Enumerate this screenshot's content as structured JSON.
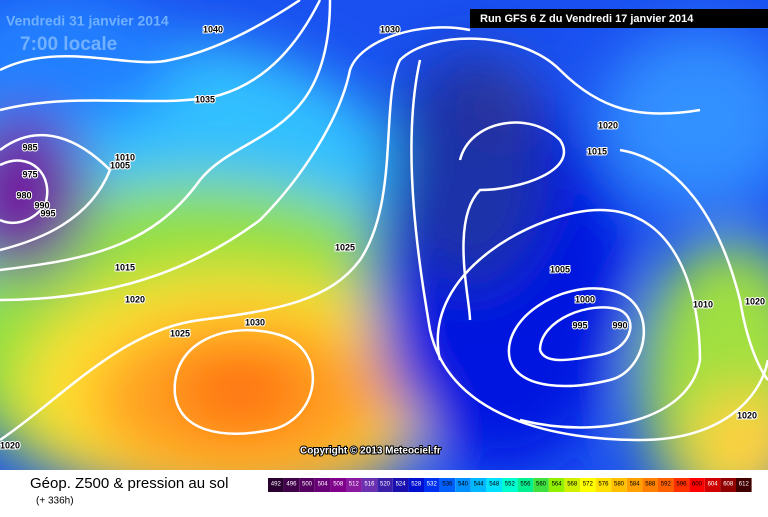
{
  "header": {
    "date": "Vendredi 31 janvier 2014",
    "time": "7:00 locale",
    "run": "Run GFS 6 Z du Vendredi 17 janvier 2014"
  },
  "copyright": "Copyright © 2013 Meteociel.fr",
  "footer": {
    "title": "Géop. Z500 & pression au sol",
    "lead": "(+ 336h)"
  },
  "isobar_labels": [
    "1040",
    "1030",
    "1035",
    "985",
    "975",
    "980",
    "990",
    "995",
    "1010",
    "1005",
    "1015",
    "1020",
    "1025",
    "1030",
    "1025",
    "1020",
    "1015",
    "1005",
    "1000",
    "995",
    "990",
    "1010",
    "1020",
    "1020",
    "1020"
  ],
  "legend": {
    "labels": [
      492,
      496,
      500,
      504,
      508,
      512,
      516,
      520,
      524,
      528,
      532,
      536,
      540,
      544,
      548,
      552,
      556,
      560,
      564,
      568,
      572,
      576,
      580,
      584,
      588,
      592,
      596,
      600,
      604,
      608,
      612
    ],
    "colors": [
      "#2a0030",
      "#40004a",
      "#550060",
      "#6a0078",
      "#80008c",
      "#8a1aa0",
      "#6a30b0",
      "#3a20a8",
      "#1a10b0",
      "#0010d0",
      "#0030f0",
      "#0060ff",
      "#0090ff",
      "#00b8ff",
      "#00e0ff",
      "#00ffd0",
      "#00f090",
      "#40e040",
      "#90f000",
      "#d0f000",
      "#ffff00",
      "#ffe000",
      "#ffc000",
      "#ffa000",
      "#ff8000",
      "#ff6000",
      "#ff3000",
      "#ff0000",
      "#d00000",
      "#900000",
      "#400000"
    ]
  }
}
